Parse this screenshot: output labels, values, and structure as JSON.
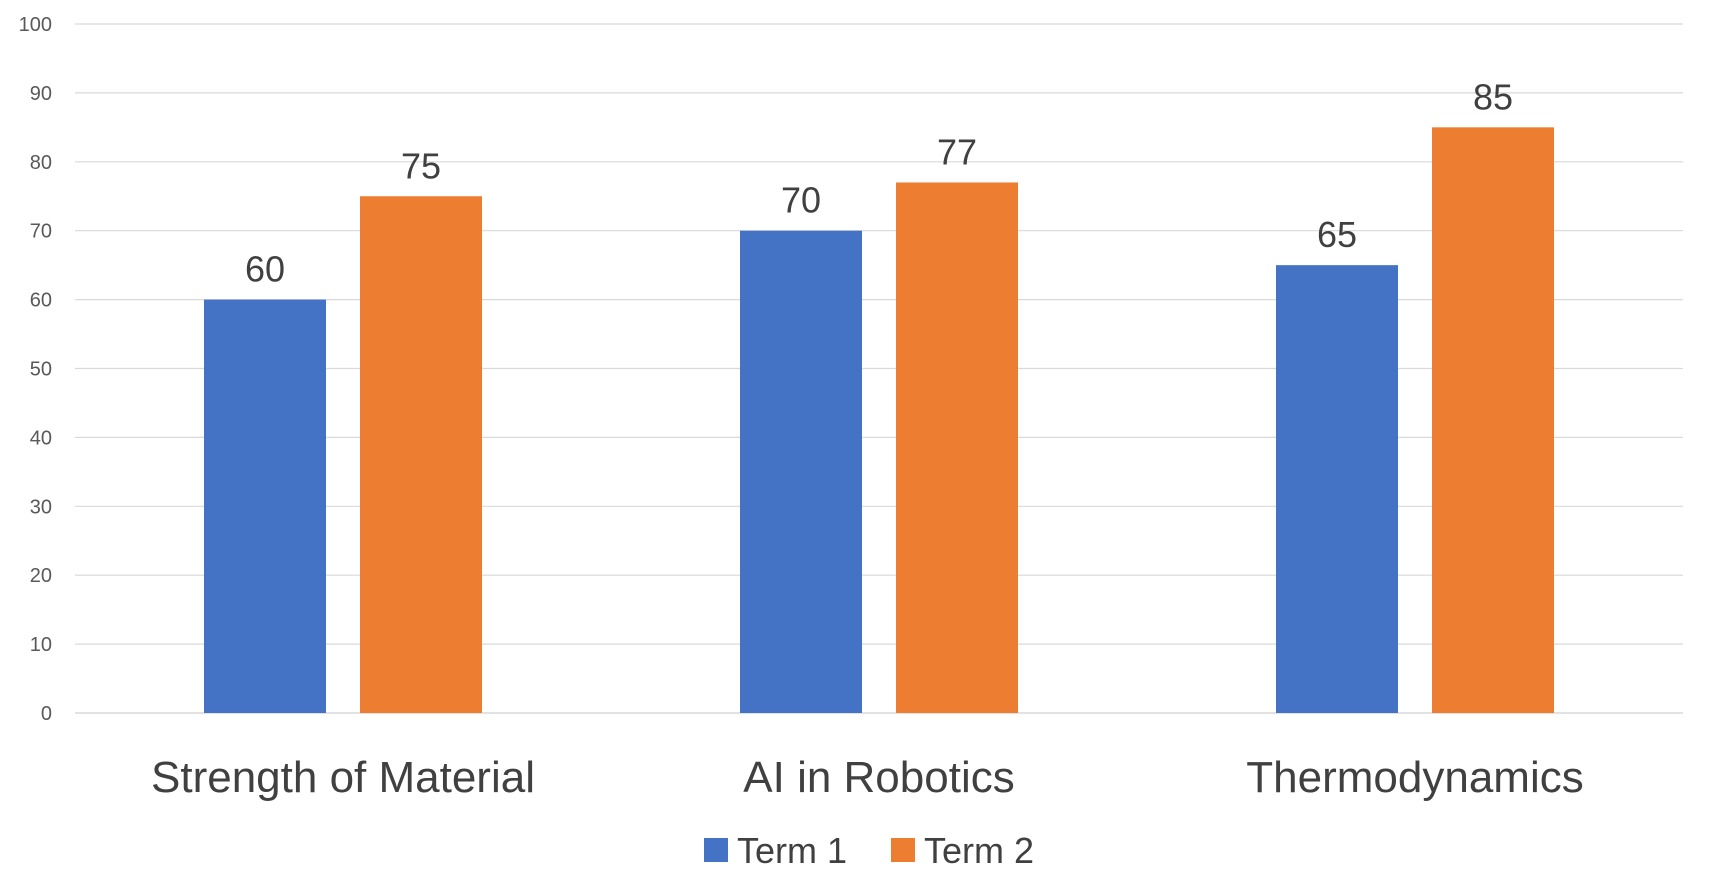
{
  "chart_data": {
    "type": "bar",
    "categories": [
      "Strength of Material",
      "AI in Robotics",
      "Thermodynamics"
    ],
    "series": [
      {
        "name": "Term 1",
        "values": [
          60,
          70,
          65
        ],
        "color": "#4472C4"
      },
      {
        "name": "Term 2",
        "values": [
          75,
          77,
          85
        ],
        "color": "#ED7D31"
      }
    ],
    "ylim": [
      0,
      100
    ],
    "yticks": [
      0,
      10,
      20,
      30,
      40,
      50,
      60,
      70,
      80,
      90,
      100
    ],
    "data_labels": true,
    "grid": true,
    "legend_position": "bottom",
    "gridline_color": "#D9D9D9"
  }
}
